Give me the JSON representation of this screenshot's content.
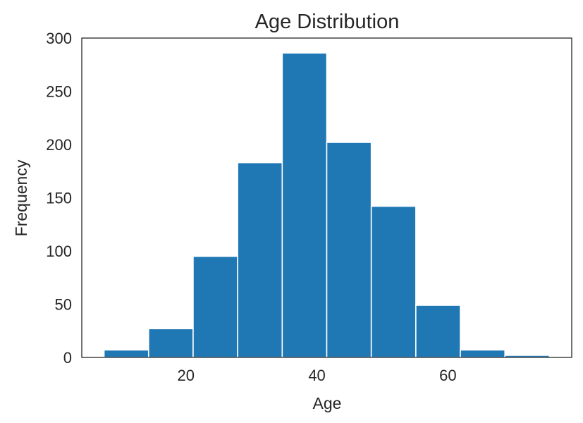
{
  "chart_data": {
    "type": "histogram",
    "title": "Age Distribution",
    "xlabel": "Age",
    "ylabel": "Frequency",
    "bin_edges": [
      7.5,
      14.3,
      21.1,
      27.9,
      34.7,
      41.5,
      48.3,
      55.1,
      61.9,
      68.7,
      75.5
    ],
    "values": [
      7,
      27,
      95,
      183,
      286,
      202,
      142,
      49,
      7,
      2
    ],
    "xlim": [
      4.1,
      78.9
    ],
    "ylim": [
      0,
      300
    ],
    "xticks": [
      20,
      40,
      60
    ],
    "yticks": [
      0,
      50,
      100,
      150,
      200,
      250,
      300
    ],
    "color": "#1f77b4",
    "grid": false
  }
}
